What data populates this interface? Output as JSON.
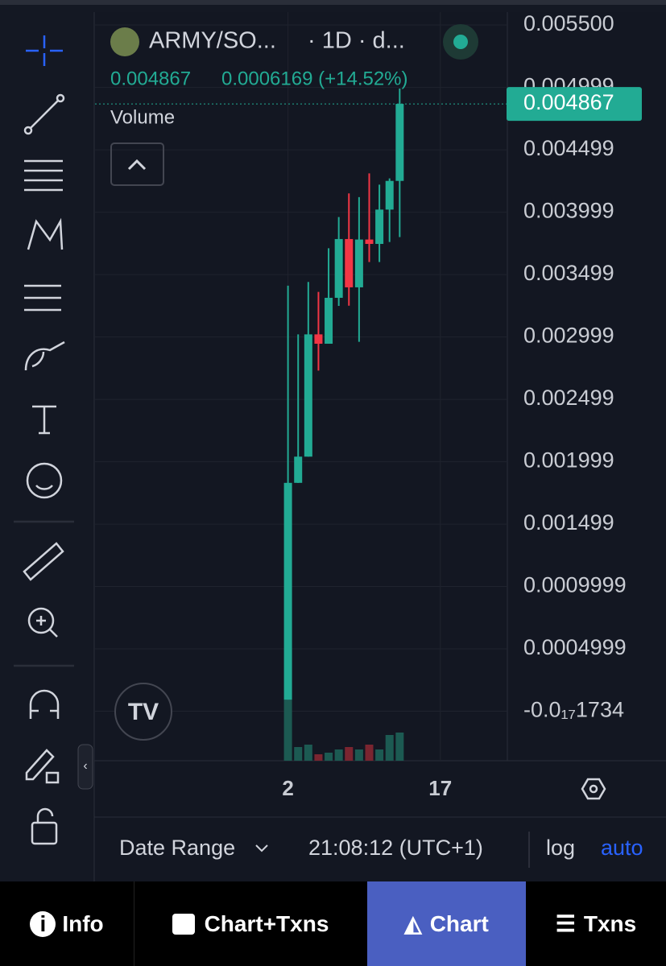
{
  "header": {
    "pair": "ARMY/SO...",
    "meta": "· 1D · d...",
    "price": "0.004867",
    "change": "0.0006169 (+14.52%)",
    "volume_label": "Volume"
  },
  "chart": {
    "type": "candlestick",
    "candles": [
      {
        "open": 9e-05,
        "high": 0.00341,
        "low": 9e-05,
        "close": 0.00183
      },
      {
        "open": 0.00183,
        "high": 0.00302,
        "low": 0.00183,
        "close": 0.00204
      },
      {
        "open": 0.00204,
        "high": 0.00344,
        "low": 0.00204,
        "close": 0.00302
      },
      {
        "open": 0.00302,
        "high": 0.00336,
        "low": 0.00273,
        "close": 0.002945
      },
      {
        "open": 0.002945,
        "high": 0.00371,
        "low": 0.002945,
        "close": 0.003313
      },
      {
        "open": 0.003313,
        "high": 0.00396,
        "low": 0.003248,
        "close": 0.003784
      },
      {
        "open": 0.003784,
        "high": 0.00415,
        "low": 0.00325,
        "close": 0.003397
      },
      {
        "open": 0.003397,
        "high": 0.00412,
        "low": 0.00296,
        "close": 0.00378
      },
      {
        "open": 0.00378,
        "high": 0.00431,
        "low": 0.0036,
        "close": 0.003745
      },
      {
        "open": 0.003745,
        "high": 0.00422,
        "low": 0.0036,
        "close": 0.00402
      },
      {
        "open": 0.00402,
        "high": 0.00427,
        "low": 0.00376,
        "close": 0.00425
      },
      {
        "open": 0.00425,
        "high": 0.00499,
        "low": 0.0038,
        "close": 0.004867
      }
    ],
    "volumes": [
      75,
      17,
      20,
      8,
      10,
      14,
      17,
      14,
      20,
      14,
      32,
      35
    ],
    "ylim": [
      -0.000397,
      0.005603
    ],
    "yticks": [
      {
        "value": 0.0055,
        "label": "0.005500"
      },
      0.004999,
      0.004499,
      0.003999,
      0.003499,
      0.002999,
      0.002499,
      0.001999,
      0.001499,
      0.0009999,
      0.0004999,
      {
        "value": -1.734e-18,
        "label": "-0.0₁₇1734"
      }
    ],
    "xlim": [
      -19,
      21.6
    ],
    "xticks": [
      {
        "value": 0,
        "label": "2"
      },
      {
        "value": 15,
        "label": "17"
      }
    ]
  },
  "footer": {
    "date_range": "Date Range",
    "time": "21:08:12 (UTC+1)",
    "log": "log",
    "auto": "auto"
  },
  "nav": [
    "Info",
    "Chart+Txns",
    "Chart",
    "Txns"
  ]
}
